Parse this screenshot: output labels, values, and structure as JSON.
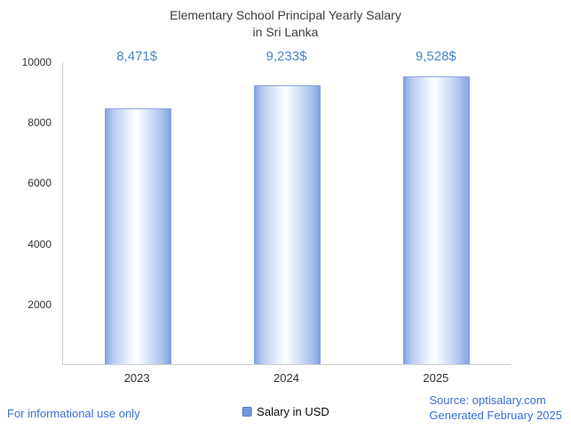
{
  "chart_data": {
    "type": "bar",
    "title": "Elementary School Principal Yearly Salary",
    "subtitle": "in Sri Lanka",
    "categories": [
      "2023",
      "2024",
      "2025"
    ],
    "series": [
      {
        "name": "Salary in USD",
        "values": [
          8471,
          9233,
          9528
        ]
      }
    ],
    "value_labels": [
      "8,471$",
      "9,233$",
      "9,528$"
    ],
    "xlabel": "",
    "ylabel": "",
    "ylim": [
      0,
      10000
    ],
    "yticks": [
      2000,
      4000,
      6000,
      8000,
      10000
    ],
    "grid": false,
    "legend_position": "bottom"
  },
  "legend": {
    "label": "Salary in USD"
  },
  "footer": {
    "disclaimer": "For informational use only",
    "source": "Source: optisalary.com",
    "generated": "Generated February 2025"
  },
  "colors": {
    "bar_edge": "#7f9fe0",
    "bar_center": "#fdfeff",
    "value_label": "#4d86c6",
    "footer_link": "#3b6fd6",
    "axis_line": "#cfcfcf",
    "title_text": "#3e3e3e"
  }
}
